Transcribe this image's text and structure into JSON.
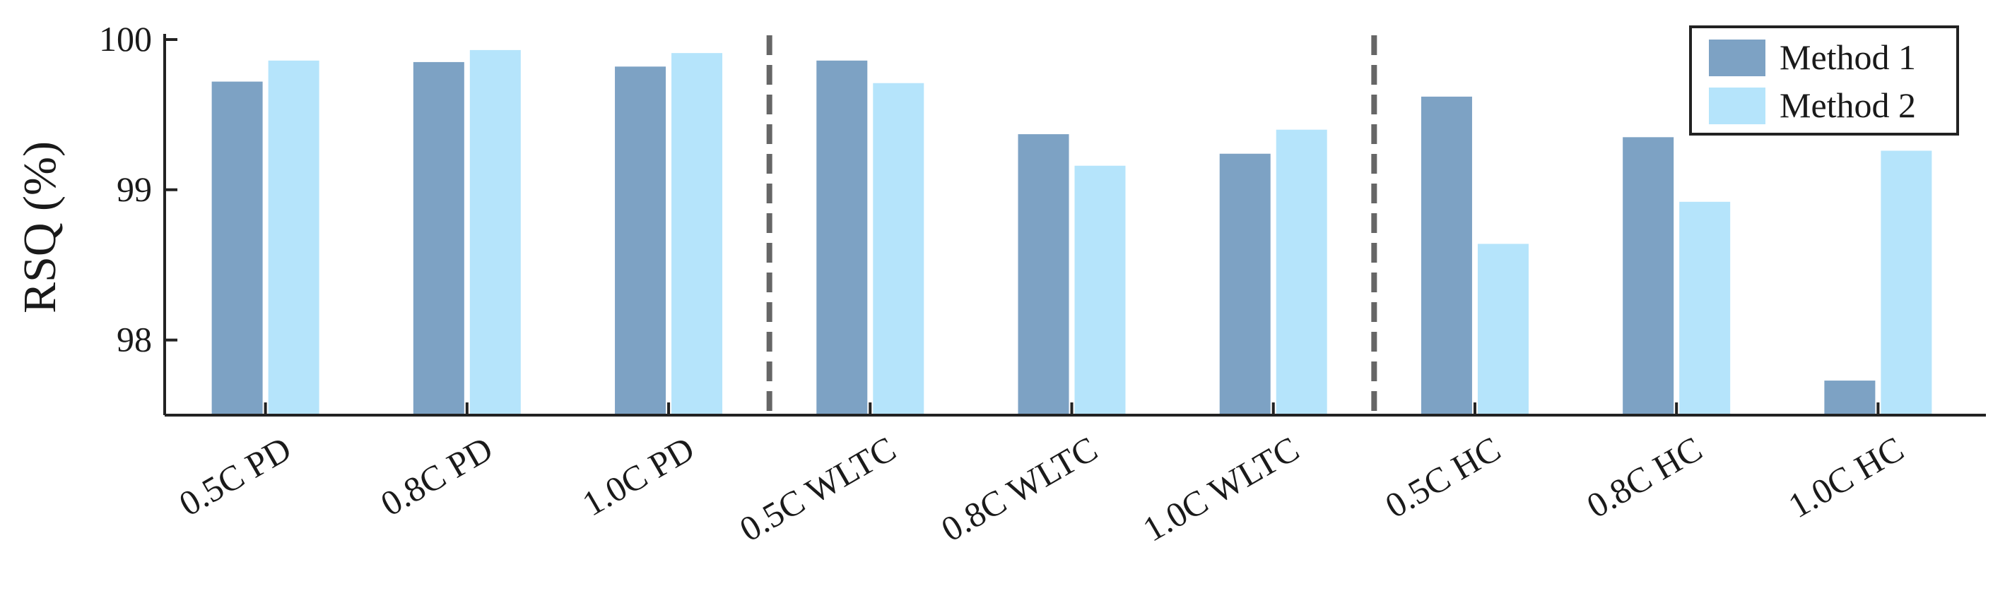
{
  "chart_data": {
    "type": "bar",
    "ylabel": "RSQ (%)",
    "ylim": [
      97.5,
      100
    ],
    "yticks": [
      98,
      99,
      100
    ],
    "categories": [
      "0.5C PD",
      "0.8C PD",
      "1.0C PD",
      "0.5C WLTC",
      "0.8C WLTC",
      "1.0C WLTC",
      "0.5C HC",
      "0.8C HC",
      "1.0C HC"
    ],
    "series": [
      {
        "name": "Method 1",
        "color": "#7da2c4",
        "values": [
          99.72,
          99.85,
          99.82,
          99.86,
          99.37,
          99.24,
          99.62,
          99.35,
          97.73
        ]
      },
      {
        "name": "Method 2",
        "color": "#b5e4fb",
        "values": [
          99.86,
          99.93,
          99.91,
          99.71,
          99.16,
          99.4,
          98.64,
          98.92,
          99.26
        ]
      }
    ],
    "group_separators_after": [
      2,
      5
    ],
    "legend_position": "top-right",
    "grid": false
  }
}
